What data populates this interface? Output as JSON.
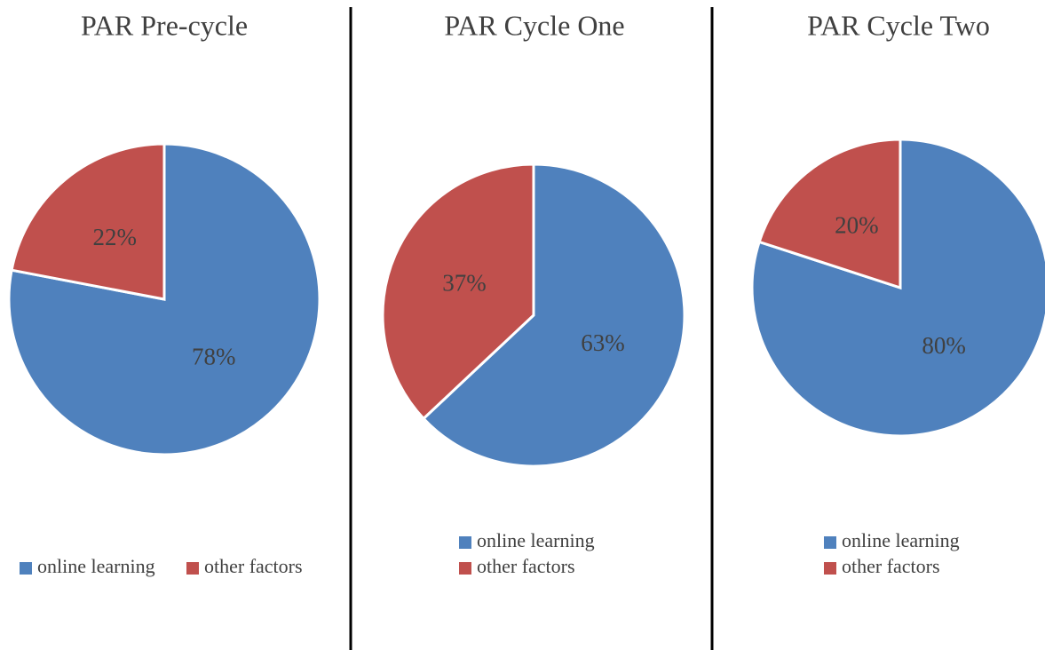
{
  "chart_data": [
    {
      "type": "pie",
      "title": "PAR Pre-cycle",
      "categories": [
        "online learning",
        "other factors"
      ],
      "values": [
        78,
        22
      ],
      "value_labels": [
        "78%",
        "22%"
      ],
      "colors": [
        "#4f81bd",
        "#c0504d"
      ]
    },
    {
      "type": "pie",
      "title": "PAR Cycle One",
      "categories": [
        "online learning",
        "other factors"
      ],
      "values": [
        63,
        37
      ],
      "value_labels": [
        "63%",
        "37%"
      ],
      "colors": [
        "#4f81bd",
        "#c0504d"
      ]
    },
    {
      "type": "pie",
      "title": "PAR Cycle Two",
      "categories": [
        "online learning",
        "other factors"
      ],
      "values": [
        80,
        20
      ],
      "value_labels": [
        "80%",
        "20%"
      ],
      "colors": [
        "#4f81bd",
        "#c0504d"
      ]
    }
  ]
}
